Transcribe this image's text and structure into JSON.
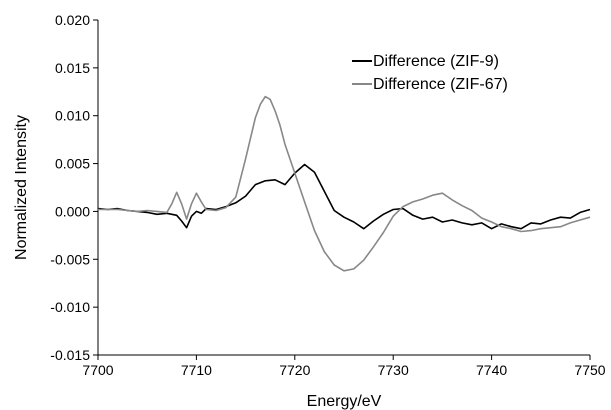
{
  "chart_data": {
    "type": "line",
    "title": "",
    "xlabel": "Energy/eV",
    "ylabel": "Normalized Intensity",
    "xlim": [
      7700,
      7750
    ],
    "ylim": [
      -0.015,
      0.02
    ],
    "x_ticks": [
      7700,
      7710,
      7720,
      7730,
      7740,
      7750
    ],
    "y_ticks": [
      -0.015,
      -0.01,
      -0.005,
      0.0,
      0.005,
      0.01,
      0.015,
      0.02
    ],
    "x_tick_labels": [
      "7700",
      "7710",
      "7720",
      "7730",
      "7740",
      "7750"
    ],
    "y_tick_labels": [
      "-0.015",
      "-0.010",
      "-0.005",
      "0.000",
      "0.005",
      "0.010",
      "0.015",
      "0.020"
    ],
    "grid": false,
    "legend_position": "top-right",
    "series": [
      {
        "name": "Difference (ZIF-9)",
        "color": "#000000",
        "x": [
          7700,
          7701,
          7702,
          7703,
          7704,
          7705,
          7706,
          7707,
          7708,
          7708.5,
          7709,
          7709.5,
          7710,
          7710.5,
          7711,
          7712,
          7713,
          7714,
          7715,
          7716,
          7717,
          7718,
          7719,
          7720,
          7721,
          7722,
          7723,
          7724,
          7725,
          7726,
          7727,
          7728,
          7729,
          7730,
          7731,
          7732,
          7733,
          7734,
          7735,
          7736,
          7737,
          7738,
          7739,
          7740,
          7741,
          7742,
          7743,
          7744,
          7745,
          7746,
          7747,
          7748,
          7749,
          7750
        ],
        "y": [
          0.0003,
          0.0002,
          0.0003,
          0.0001,
          0.0,
          -0.0001,
          -0.0003,
          -0.0002,
          -0.0004,
          -0.001,
          -0.0017,
          -0.0005,
          0.0,
          -0.0002,
          0.0003,
          0.0002,
          0.0005,
          0.0009,
          0.0016,
          0.0028,
          0.0032,
          0.0033,
          0.0028,
          0.004,
          0.0049,
          0.0041,
          0.0021,
          0.0001,
          -0.0006,
          -0.0011,
          -0.0018,
          -0.001,
          -0.0003,
          0.0002,
          0.0003,
          -0.0004,
          -0.0008,
          -0.0006,
          -0.0011,
          -0.0009,
          -0.0012,
          -0.0014,
          -0.0012,
          -0.0018,
          -0.0013,
          -0.0016,
          -0.0018,
          -0.0012,
          -0.0013,
          -0.0009,
          -0.0006,
          -0.0007,
          -0.0001,
          0.0002
        ]
      },
      {
        "name": "Difference (ZIF-67)",
        "color": "#888888",
        "x": [
          7700,
          7702,
          7704,
          7705,
          7706,
          7707,
          7707.5,
          7708,
          7708.5,
          7709,
          7709.5,
          7710,
          7710.5,
          7711,
          7712,
          7713,
          7714,
          7715,
          7716,
          7716.5,
          7717,
          7717.5,
          7718,
          7718.5,
          7719,
          7720,
          7721,
          7722,
          7723,
          7724,
          7725,
          7726,
          7727,
          7728,
          7729,
          7730,
          7731,
          7732,
          7733,
          7734,
          7735,
          7736,
          7737,
          7738,
          7739,
          7740,
          7741,
          7742,
          7743,
          7744,
          7745,
          7746,
          7747,
          7748,
          7749,
          7750
        ],
        "y": [
          0.0002,
          0.0002,
          0.0,
          0.0001,
          0.0,
          -0.0001,
          0.0008,
          0.002,
          0.0008,
          -0.0008,
          0.0008,
          0.0019,
          0.001,
          0.0002,
          0.0001,
          0.0004,
          0.0015,
          0.0055,
          0.0098,
          0.0112,
          0.012,
          0.0117,
          0.0105,
          0.009,
          0.007,
          0.004,
          0.001,
          -0.002,
          -0.0042,
          -0.0056,
          -0.0062,
          -0.006,
          -0.0051,
          -0.0037,
          -0.0022,
          -0.0005,
          0.0005,
          0.001,
          0.0013,
          0.0017,
          0.0019,
          0.0012,
          0.0006,
          0.0001,
          -0.0007,
          -0.0011,
          -0.0016,
          -0.0018,
          -0.0021,
          -0.002,
          -0.0018,
          -0.0017,
          -0.0016,
          -0.0012,
          -0.0009,
          -0.0006
        ]
      }
    ]
  }
}
